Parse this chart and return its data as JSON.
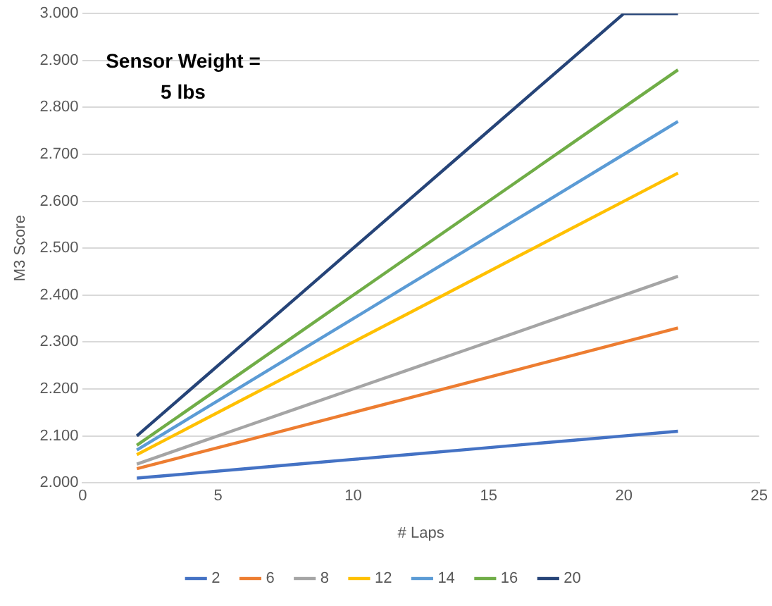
{
  "chart_data": {
    "type": "line",
    "xlabel": "# Laps",
    "ylabel": "M3 Score",
    "annotations": [
      "Sensor Weight = 5 lbs"
    ],
    "x": [
      2,
      4,
      6,
      8,
      10,
      12,
      14,
      16,
      18,
      20,
      22
    ],
    "series": [
      {
        "name": "2",
        "color": "#4472c4",
        "values": [
          2010,
          2020,
          2030,
          2040,
          2050,
          2060,
          2070,
          2080,
          2090,
          2100,
          2110
        ]
      },
      {
        "name": "6",
        "color": "#ed7d31",
        "values": [
          2030,
          2060,
          2090,
          2120,
          2150,
          2180,
          2210,
          2240,
          2270,
          2300,
          2330
        ]
      },
      {
        "name": "8",
        "color": "#a5a5a5",
        "values": [
          2040,
          2080,
          2120,
          2160,
          2200,
          2240,
          2280,
          2320,
          2360,
          2400,
          2440
        ]
      },
      {
        "name": "12",
        "color": "#ffc000",
        "values": [
          2060,
          2120,
          2180,
          2240,
          2300,
          2360,
          2420,
          2480,
          2540,
          2600,
          2660
        ]
      },
      {
        "name": "14",
        "color": "#5b9bd5",
        "values": [
          2070,
          2140,
          2210,
          2280,
          2350,
          2420,
          2490,
          2560,
          2630,
          2700,
          2770
        ]
      },
      {
        "name": "16",
        "color": "#70ad47",
        "values": [
          2080,
          2160,
          2240,
          2320,
          2400,
          2480,
          2560,
          2640,
          2720,
          2800,
          2880
        ]
      },
      {
        "name": "20",
        "color": "#264478",
        "values": [
          2100,
          2200,
          2300,
          2400,
          2500,
          2600,
          2700,
          2800,
          2900,
          3000,
          3000
        ]
      }
    ],
    "xlim": [
      0,
      25
    ],
    "xticks": [
      0,
      5,
      10,
      15,
      20,
      25
    ],
    "ylim": [
      2000,
      3000
    ],
    "yticks": [
      {
        "value": 2000,
        "label": "2.000"
      },
      {
        "value": 2100,
        "label": "2.100"
      },
      {
        "value": 2200,
        "label": "2.200"
      },
      {
        "value": 2300,
        "label": "2.300"
      },
      {
        "value": 2400,
        "label": "2.400"
      },
      {
        "value": 2500,
        "label": "2.500"
      },
      {
        "value": 2600,
        "label": "2.600"
      },
      {
        "value": 2700,
        "label": "2.700"
      },
      {
        "value": 2800,
        "label": "2.800"
      },
      {
        "value": 2900,
        "label": "2.900"
      },
      {
        "value": 3000,
        "label": "3.000"
      }
    ],
    "grid": "y",
    "legend": "bottom",
    "marker": "none",
    "line_style": "solid"
  }
}
